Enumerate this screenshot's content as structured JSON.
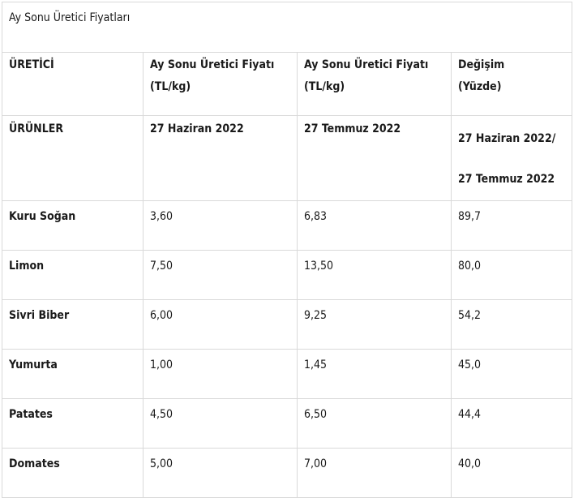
{
  "title": "Ay Sonu Üretici Fiyatları",
  "header": {
    "col1": "ÜRETİCİ",
    "col2_line1": "Ay Sonu Üretici Fiyatı",
    "col2_line2": "(TL/kg)",
    "col3_line1": "Ay Sonu Üretici Fiyatı",
    "col3_line2": "(TL/kg)",
    "col4_line1": "Değişim",
    "col4_line2": "(Yüzde)"
  },
  "dates": {
    "col1": "ÜRÜNLER",
    "col2": "27 Haziran 2022",
    "col3": "27 Temmuz 2022",
    "col4_line1": "27 Haziran 2022/",
    "col4_line2": "27 Temmuz 2022"
  },
  "rows": [
    {
      "product": "Kuru Soğan",
      "june": "3,60",
      "july": "6,83",
      "change": "89,7"
    },
    {
      "product": "Limon",
      "june": "7,50",
      "july": "13,50",
      "change": "80,0"
    },
    {
      "product": "Sivri Biber",
      "june": "6,00",
      "july": "9,25",
      "change": "54,2"
    },
    {
      "product": "Yumurta",
      "june": "1,00",
      "july": "1,45",
      "change": "45,0"
    },
    {
      "product": "Patates",
      "june": "4,50",
      "july": "6,50",
      "change": "44,4"
    },
    {
      "product": "Domates",
      "june": "5,00",
      "july": "7,00",
      "change": "40,0"
    }
  ]
}
